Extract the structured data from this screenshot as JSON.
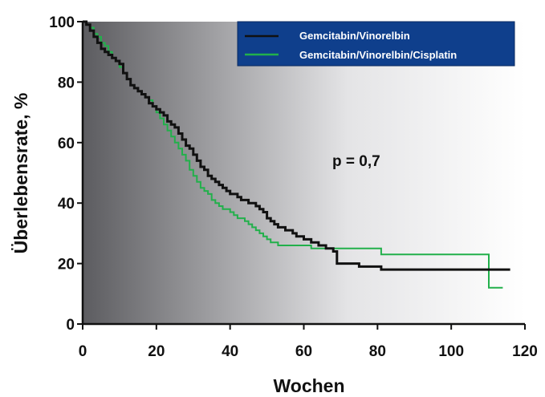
{
  "chart_data": {
    "type": "line",
    "title": "",
    "xlabel": "Wochen",
    "ylabel": "Überlebensrate, %",
    "xlim": [
      0,
      120
    ],
    "ylim": [
      0,
      100
    ],
    "xticks": [
      "0",
      "20",
      "40",
      "60",
      "80",
      "100",
      "120"
    ],
    "yticks": [
      "0",
      "20",
      "40",
      "60",
      "80",
      "100"
    ],
    "grid": false,
    "legend_position": "top-right",
    "annotation": "p = 0,7",
    "series": [
      {
        "name": "Gemcitabin/Vinorelbin",
        "color": "#111111",
        "x": [
          0,
          1,
          2,
          3,
          4,
          5,
          6,
          7,
          8,
          9,
          10,
          11,
          12,
          13,
          14,
          15,
          16,
          17,
          18,
          19,
          20,
          21,
          22,
          23,
          24,
          25,
          26,
          27,
          28,
          29,
          30,
          31,
          32,
          33,
          34,
          35,
          36,
          37,
          38,
          39,
          40,
          41,
          42,
          43,
          44,
          45,
          46,
          47,
          48,
          49,
          50,
          51,
          52,
          53,
          54,
          55,
          56,
          57,
          58,
          59,
          60,
          61,
          62,
          63,
          64,
          65,
          66,
          67,
          68,
          69,
          70,
          75,
          80,
          81,
          90,
          100,
          110,
          116
        ],
        "y": [
          100,
          99,
          97,
          95,
          93,
          91,
          90,
          89,
          88,
          87,
          86,
          83,
          81,
          79,
          78,
          77,
          76,
          75,
          73,
          72,
          71,
          70,
          69,
          67,
          66,
          65,
          63,
          61,
          59,
          58,
          56,
          54,
          52,
          51,
          49,
          48,
          47,
          46,
          45,
          44,
          43,
          43,
          42,
          41,
          41,
          40,
          40,
          39,
          38,
          37,
          35,
          34,
          33,
          32,
          32,
          31,
          31,
          30,
          29,
          29,
          28,
          28,
          27,
          27,
          26,
          26,
          25,
          25,
          24,
          20,
          20,
          19,
          19,
          18,
          18,
          18,
          18,
          18
        ]
      },
      {
        "name": "Gemcitabin/Vinorelbin/Cisplatin",
        "color": "#22b04b",
        "x": [
          0,
          1,
          2,
          3,
          4,
          5,
          6,
          7,
          8,
          9,
          10,
          11,
          12,
          13,
          14,
          15,
          16,
          17,
          18,
          19,
          20,
          21,
          22,
          23,
          24,
          25,
          26,
          27,
          28,
          29,
          30,
          31,
          32,
          33,
          34,
          35,
          36,
          37,
          38,
          39,
          40,
          41,
          42,
          43,
          44,
          45,
          46,
          47,
          48,
          49,
          50,
          51,
          52,
          53,
          54,
          55,
          56,
          57,
          58,
          59,
          60,
          62,
          64,
          66,
          68,
          70,
          75,
          80,
          81,
          90,
          100,
          110,
          110.2,
          114
        ],
        "y": [
          100,
          99,
          98,
          96,
          95,
          93,
          92,
          90,
          88,
          87,
          85,
          83,
          81,
          79,
          78,
          77,
          76,
          75,
          74,
          72,
          70,
          68,
          66,
          64,
          62,
          60,
          58,
          56,
          54,
          51,
          49,
          47,
          45,
          44,
          43,
          41,
          40,
          39,
          38,
          38,
          37,
          36,
          35,
          35,
          34,
          33,
          32,
          31,
          30,
          29,
          28,
          27,
          27,
          26,
          26,
          26,
          26,
          26,
          26,
          26,
          26,
          25,
          25,
          25,
          25,
          25,
          25,
          25,
          23,
          23,
          23,
          23,
          12,
          12
        ]
      }
    ]
  }
}
